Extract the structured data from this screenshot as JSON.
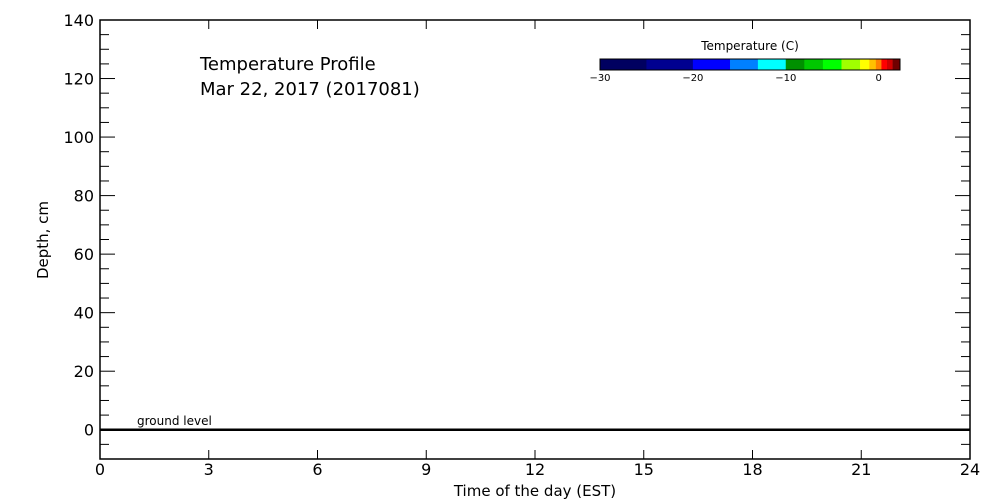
{
  "chart_data": {
    "type": "heatmap",
    "title": "Temperature Profile",
    "subtitle": "Mar 22, 2017 (2017081)",
    "xlabel": "Time of the day (EST)",
    "ylabel": "Depth, cm",
    "xlim": [
      0,
      24
    ],
    "ylim": [
      -10,
      140
    ],
    "x_ticks": [
      "0",
      "3",
      "6",
      "9",
      "12",
      "15",
      "18",
      "21",
      "24"
    ],
    "y_ticks": [
      "0",
      "20",
      "40",
      "60",
      "80",
      "100",
      "120",
      "140"
    ],
    "grid": false,
    "reference_line": {
      "y": 0,
      "label": "ground level"
    },
    "values": [],
    "colorbar": {
      "title": "Temperature (C)",
      "ticks": [
        "-30",
        "-20",
        "-10",
        "0"
      ],
      "range": [
        -30,
        2.3
      ],
      "placement": "top-right",
      "segments": [
        {
          "from": -30.0,
          "to": -25.0,
          "color": "#000060"
        },
        {
          "from": -25.0,
          "to": -20.0,
          "color": "#000090"
        },
        {
          "from": -20.0,
          "to": -16.0,
          "color": "#0000ff"
        },
        {
          "from": -16.0,
          "to": -13.0,
          "color": "#0080ff"
        },
        {
          "from": -13.0,
          "to": -10.0,
          "color": "#00ffff"
        },
        {
          "from": -10.0,
          "to": -8.0,
          "color": "#009000"
        },
        {
          "from": -8.0,
          "to": -6.0,
          "color": "#00c800"
        },
        {
          "from": -6.0,
          "to": -4.0,
          "color": "#00ff00"
        },
        {
          "from": -4.0,
          "to": -2.0,
          "color": "#a0ff00"
        },
        {
          "from": -2.0,
          "to": -1.0,
          "color": "#ffff00"
        },
        {
          "from": -1.0,
          "to": -0.3,
          "color": "#ffc000"
        },
        {
          "from": -0.3,
          "to": 0.3,
          "color": "#ff8000"
        },
        {
          "from": 0.3,
          "to": 0.9,
          "color": "#ff0000"
        },
        {
          "from": 0.9,
          "to": 1.5,
          "color": "#d00000"
        },
        {
          "from": 1.5,
          "to": 2.3,
          "color": "#700000"
        }
      ]
    }
  }
}
